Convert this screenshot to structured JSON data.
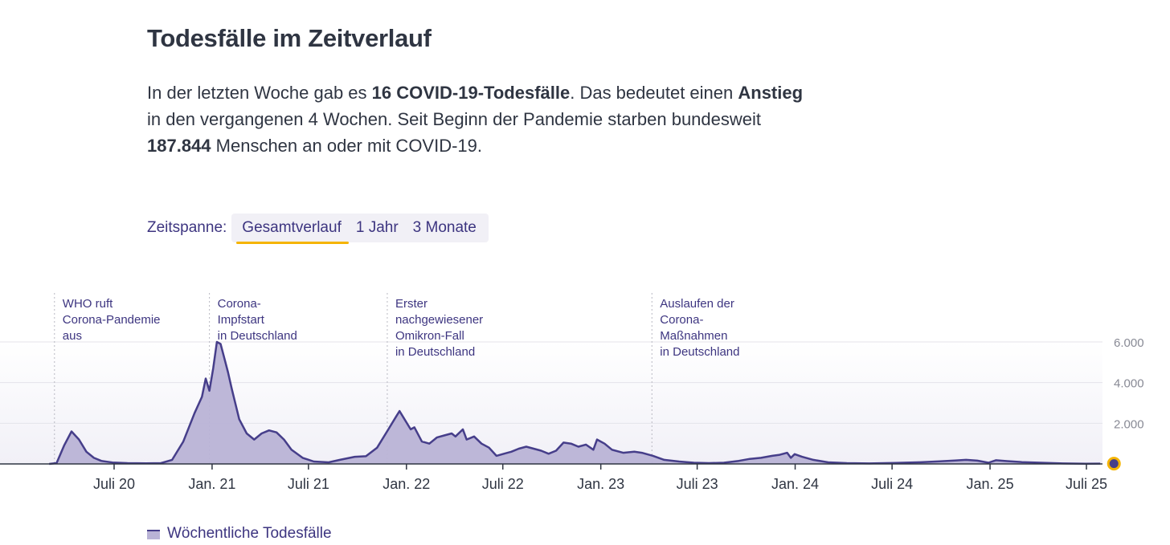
{
  "heading": "Todesfälle im Zeitverlauf",
  "intro": {
    "p1": "In der letzten Woche gab es ",
    "b1": "16 COVID-19-Todesfälle",
    "p2": ". Das bedeutet einen ",
    "b2": "Anstieg",
    "p3": " in den vergangenen 4 Wochen. Seit Beginn der Pandemie starben bundesweit ",
    "b3": "187.844",
    "p4": " Menschen an oder mit COVID-19."
  },
  "range_selector": {
    "label": "Zeitspanne:",
    "options": [
      "Gesamtverlauf",
      "1 Jahr",
      "3 Monate"
    ],
    "selected": "Gesamtverlauf"
  },
  "colors": {
    "area_fill": "#b9b3d6",
    "line": "#463e8a",
    "accent": "#f5b400",
    "text_primary": "#2f3542",
    "text_secondary": "#3d3580"
  },
  "chart_data": {
    "type": "area",
    "title": "",
    "xlabel": "",
    "ylabel": "",
    "ylim": [
      0,
      6000
    ],
    "yticks": [
      0,
      2000,
      4000,
      6000
    ],
    "ytick_labels": [
      "0",
      "2.000",
      "4.000",
      "6.000"
    ],
    "xlim": [
      "2020-03-01",
      "2025-08-08"
    ],
    "xticks": [
      {
        "date": "2020-07-01",
        "label": "Juli 20"
      },
      {
        "date": "2021-01-01",
        "label": "Jan. 21"
      },
      {
        "date": "2021-07-01",
        "label": "Juli 21"
      },
      {
        "date": "2022-01-01",
        "label": "Jan. 22"
      },
      {
        "date": "2022-07-01",
        "label": "Juli 22"
      },
      {
        "date": "2023-01-01",
        "label": "Jan. 23"
      },
      {
        "date": "2023-07-01",
        "label": "Juli 23"
      },
      {
        "date": "2024-01-01",
        "label": "Jan. 24"
      },
      {
        "date": "2024-07-01",
        "label": "Juli 24"
      },
      {
        "date": "2025-01-01",
        "label": "Jan. 25"
      },
      {
        "date": "2025-07-01",
        "label": "Juli 25"
      }
    ],
    "grid": true,
    "legend_position": "bottom-left",
    "series": [
      {
        "name": "Wöchentliche Todesfälle",
        "points": [
          [
            "2020-03-01",
            0
          ],
          [
            "2020-03-15",
            40
          ],
          [
            "2020-03-29",
            900
          ],
          [
            "2020-04-12",
            1600
          ],
          [
            "2020-04-26",
            1200
          ],
          [
            "2020-05-10",
            600
          ],
          [
            "2020-05-24",
            300
          ],
          [
            "2020-06-07",
            150
          ],
          [
            "2020-06-28",
            70
          ],
          [
            "2020-07-26",
            40
          ],
          [
            "2020-08-30",
            30
          ],
          [
            "2020-09-27",
            40
          ],
          [
            "2020-10-18",
            200
          ],
          [
            "2020-11-08",
            1100
          ],
          [
            "2020-11-29",
            2500
          ],
          [
            "2020-12-13",
            3300
          ],
          [
            "2020-12-20",
            4200
          ],
          [
            "2020-12-27",
            3600
          ],
          [
            "2021-01-03",
            4700
          ],
          [
            "2021-01-10",
            6000
          ],
          [
            "2021-01-17",
            5900
          ],
          [
            "2021-01-24",
            5200
          ],
          [
            "2021-01-31",
            4500
          ],
          [
            "2021-02-07",
            3700
          ],
          [
            "2021-02-21",
            2200
          ],
          [
            "2021-03-07",
            1500
          ],
          [
            "2021-03-21",
            1200
          ],
          [
            "2021-04-04",
            1500
          ],
          [
            "2021-04-18",
            1650
          ],
          [
            "2021-05-02",
            1550
          ],
          [
            "2021-05-16",
            1200
          ],
          [
            "2021-05-30",
            700
          ],
          [
            "2021-06-20",
            300
          ],
          [
            "2021-07-11",
            120
          ],
          [
            "2021-08-08",
            80
          ],
          [
            "2021-08-29",
            200
          ],
          [
            "2021-09-26",
            350
          ],
          [
            "2021-10-17",
            380
          ],
          [
            "2021-11-07",
            800
          ],
          [
            "2021-11-28",
            1700
          ],
          [
            "2021-12-12",
            2300
          ],
          [
            "2021-12-19",
            2600
          ],
          [
            "2021-12-26",
            2300
          ],
          [
            "2022-01-09",
            1700
          ],
          [
            "2022-01-16",
            1800
          ],
          [
            "2022-01-30",
            1100
          ],
          [
            "2022-02-13",
            1000
          ],
          [
            "2022-02-27",
            1300
          ],
          [
            "2022-03-13",
            1400
          ],
          [
            "2022-03-27",
            1500
          ],
          [
            "2022-04-03",
            1350
          ],
          [
            "2022-04-17",
            1700
          ],
          [
            "2022-04-24",
            1200
          ],
          [
            "2022-05-08",
            1350
          ],
          [
            "2022-05-22",
            1000
          ],
          [
            "2022-06-05",
            800
          ],
          [
            "2022-06-19",
            400
          ],
          [
            "2022-07-03",
            500
          ],
          [
            "2022-07-17",
            600
          ],
          [
            "2022-07-31",
            750
          ],
          [
            "2022-08-14",
            850
          ],
          [
            "2022-08-28",
            750
          ],
          [
            "2022-09-11",
            650
          ],
          [
            "2022-09-25",
            500
          ],
          [
            "2022-10-09",
            650
          ],
          [
            "2022-10-23",
            1050
          ],
          [
            "2022-11-06",
            1000
          ],
          [
            "2022-11-20",
            850
          ],
          [
            "2022-12-04",
            950
          ],
          [
            "2022-12-18",
            700
          ],
          [
            "2022-12-25",
            1200
          ],
          [
            "2023-01-08",
            1000
          ],
          [
            "2023-01-22",
            700
          ],
          [
            "2023-02-12",
            550
          ],
          [
            "2023-03-05",
            600
          ],
          [
            "2023-03-19",
            550
          ],
          [
            "2023-04-09",
            400
          ],
          [
            "2023-04-30",
            200
          ],
          [
            "2023-05-28",
            120
          ],
          [
            "2023-06-25",
            60
          ],
          [
            "2023-07-23",
            40
          ],
          [
            "2023-08-20",
            60
          ],
          [
            "2023-09-17",
            150
          ],
          [
            "2023-10-08",
            250
          ],
          [
            "2023-10-29",
            300
          ],
          [
            "2023-11-19",
            400
          ],
          [
            "2023-12-03",
            450
          ],
          [
            "2023-12-17",
            550
          ],
          [
            "2023-12-24",
            300
          ],
          [
            "2023-12-31",
            480
          ],
          [
            "2024-01-14",
            350
          ],
          [
            "2024-02-04",
            200
          ],
          [
            "2024-03-03",
            80
          ],
          [
            "2024-04-07",
            40
          ],
          [
            "2024-05-19",
            25
          ],
          [
            "2024-07-07",
            50
          ],
          [
            "2024-08-18",
            80
          ],
          [
            "2024-09-29",
            130
          ],
          [
            "2024-10-27",
            170
          ],
          [
            "2024-11-17",
            200
          ],
          [
            "2024-12-08",
            160
          ],
          [
            "2024-12-29",
            60
          ],
          [
            "2025-01-12",
            180
          ],
          [
            "2025-02-02",
            140
          ],
          [
            "2025-03-02",
            90
          ],
          [
            "2025-04-06",
            60
          ],
          [
            "2025-05-18",
            25
          ],
          [
            "2025-06-29",
            12
          ],
          [
            "2025-07-27",
            16
          ]
        ]
      }
    ],
    "annotations": [
      {
        "date": "2020-03-11",
        "lines": [
          "WHO ruft",
          "Corona-Pandemie",
          "aus"
        ]
      },
      {
        "date": "2020-12-27",
        "lines": [
          "Corona-",
          "Impfstart",
          "in Deutschland"
        ]
      },
      {
        "date": "2021-11-26",
        "lines": [
          "Erster",
          "nachgewiesener",
          "Omikron-Fall",
          "in Deutschland"
        ]
      },
      {
        "date": "2023-04-07",
        "lines": [
          "Auslaufen der",
          "Corona-",
          "Maßnahmen",
          "in Deutschland"
        ]
      }
    ],
    "last_point": {
      "date": "2025-07-27",
      "value": 16
    }
  }
}
